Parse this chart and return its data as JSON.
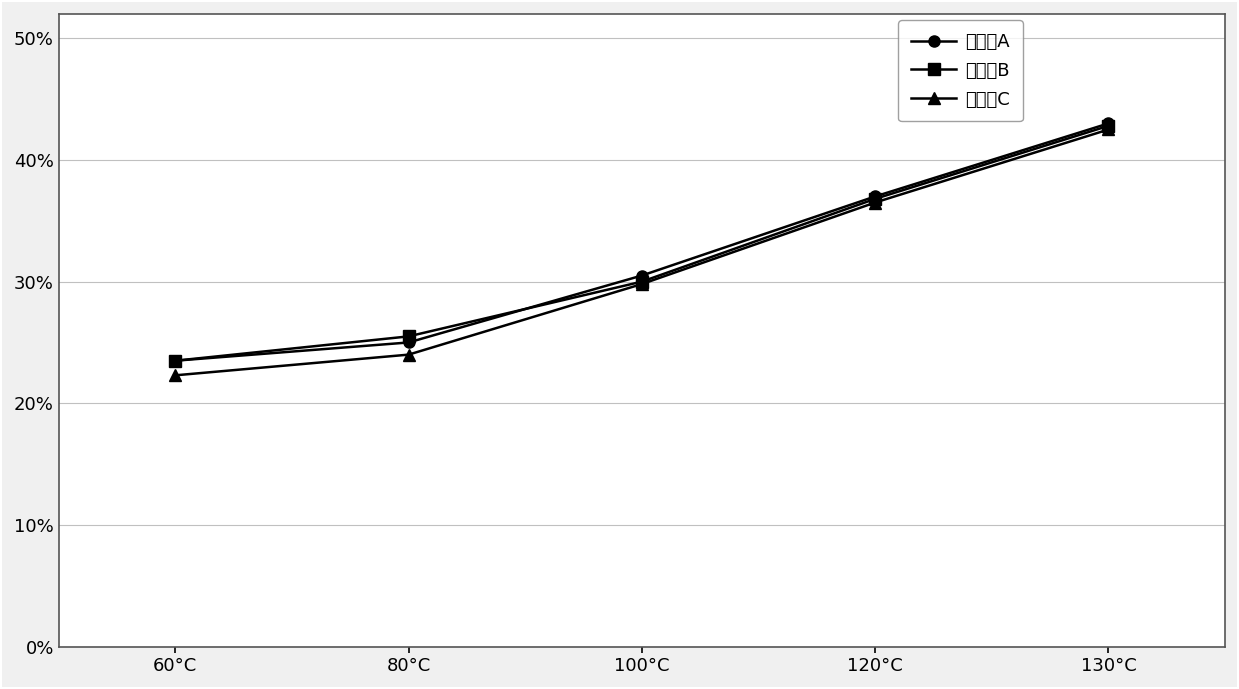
{
  "x_labels": [
    "60°C",
    "80°C",
    "100°C",
    "120°C",
    "130°C"
  ],
  "x_positions": [
    0,
    1,
    2,
    3,
    4
  ],
  "series": [
    {
      "name": "皥洗剂A",
      "values": [
        0.235,
        0.25,
        0.305,
        0.37,
        0.43
      ],
      "color": "#000000",
      "marker": "o",
      "markersize": 8,
      "linewidth": 1.8
    },
    {
      "name": "皥洗剂B",
      "values": [
        0.235,
        0.255,
        0.3,
        0.368,
        0.428
      ],
      "color": "#000000",
      "marker": "s",
      "markersize": 8,
      "linewidth": 1.8
    },
    {
      "name": "皥洗剂C",
      "values": [
        0.223,
        0.24,
        0.298,
        0.365,
        0.425
      ],
      "color": "#000000",
      "marker": "^",
      "markersize": 8,
      "linewidth": 1.8
    }
  ],
  "ylim": [
    0.0,
    0.52
  ],
  "yticks": [
    0.0,
    0.1,
    0.2,
    0.3,
    0.4,
    0.5
  ],
  "ytick_labels": [
    "0%",
    "10%",
    "20%",
    "30%",
    "40%",
    "50%"
  ],
  "background_color": "#f0f0f0",
  "plot_bg_color": "#ffffff",
  "grid_color": "#c0c0c0",
  "figsize": [
    12.39,
    6.89
  ],
  "dpi": 100,
  "border_color": "#888888"
}
